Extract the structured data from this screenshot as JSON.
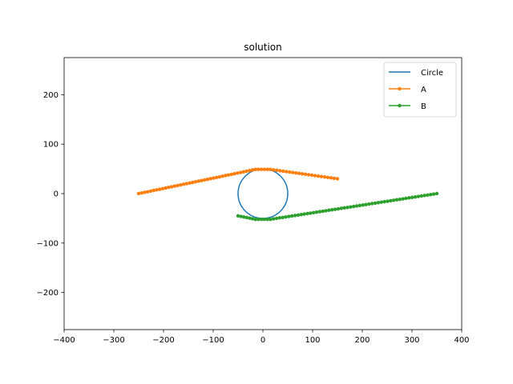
{
  "chart_data": {
    "type": "line",
    "title": "solution",
    "xlabel": "",
    "ylabel": "",
    "xlim": [
      -400,
      400
    ],
    "ylim": [
      -275,
      275
    ],
    "xticks": [
      -400,
      -300,
      -200,
      -100,
      0,
      100,
      200,
      300,
      400
    ],
    "yticks": [
      -200,
      -100,
      0,
      100,
      200
    ],
    "grid": false,
    "legend_position": "top-right",
    "series": [
      {
        "name": "Circle",
        "kind": "circle",
        "center": [
          0,
          0
        ],
        "radius": 50,
        "color": "#1f77b4"
      },
      {
        "name": "A",
        "kind": "line-markers",
        "color": "#ff7f0e",
        "segments": [
          {
            "from": [
              -250,
              0
            ],
            "to": [
              -15,
              49
            ],
            "count": 40
          },
          {
            "from": [
              -15,
              49
            ],
            "to": [
              15,
              49
            ],
            "count": 6
          },
          {
            "from": [
              15,
              49
            ],
            "to": [
              150,
              30
            ],
            "count": 22
          }
        ]
      },
      {
        "name": "B",
        "kind": "line-markers",
        "color": "#2ca02c",
        "segments": [
          {
            "from": [
              -50,
              -45
            ],
            "to": [
              -15,
              -52
            ],
            "count": 7
          },
          {
            "from": [
              -15,
              -52
            ],
            "to": [
              15,
              -52
            ],
            "count": 6
          },
          {
            "from": [
              15,
              -52
            ],
            "to": [
              350,
              0
            ],
            "count": 55
          }
        ]
      }
    ]
  }
}
